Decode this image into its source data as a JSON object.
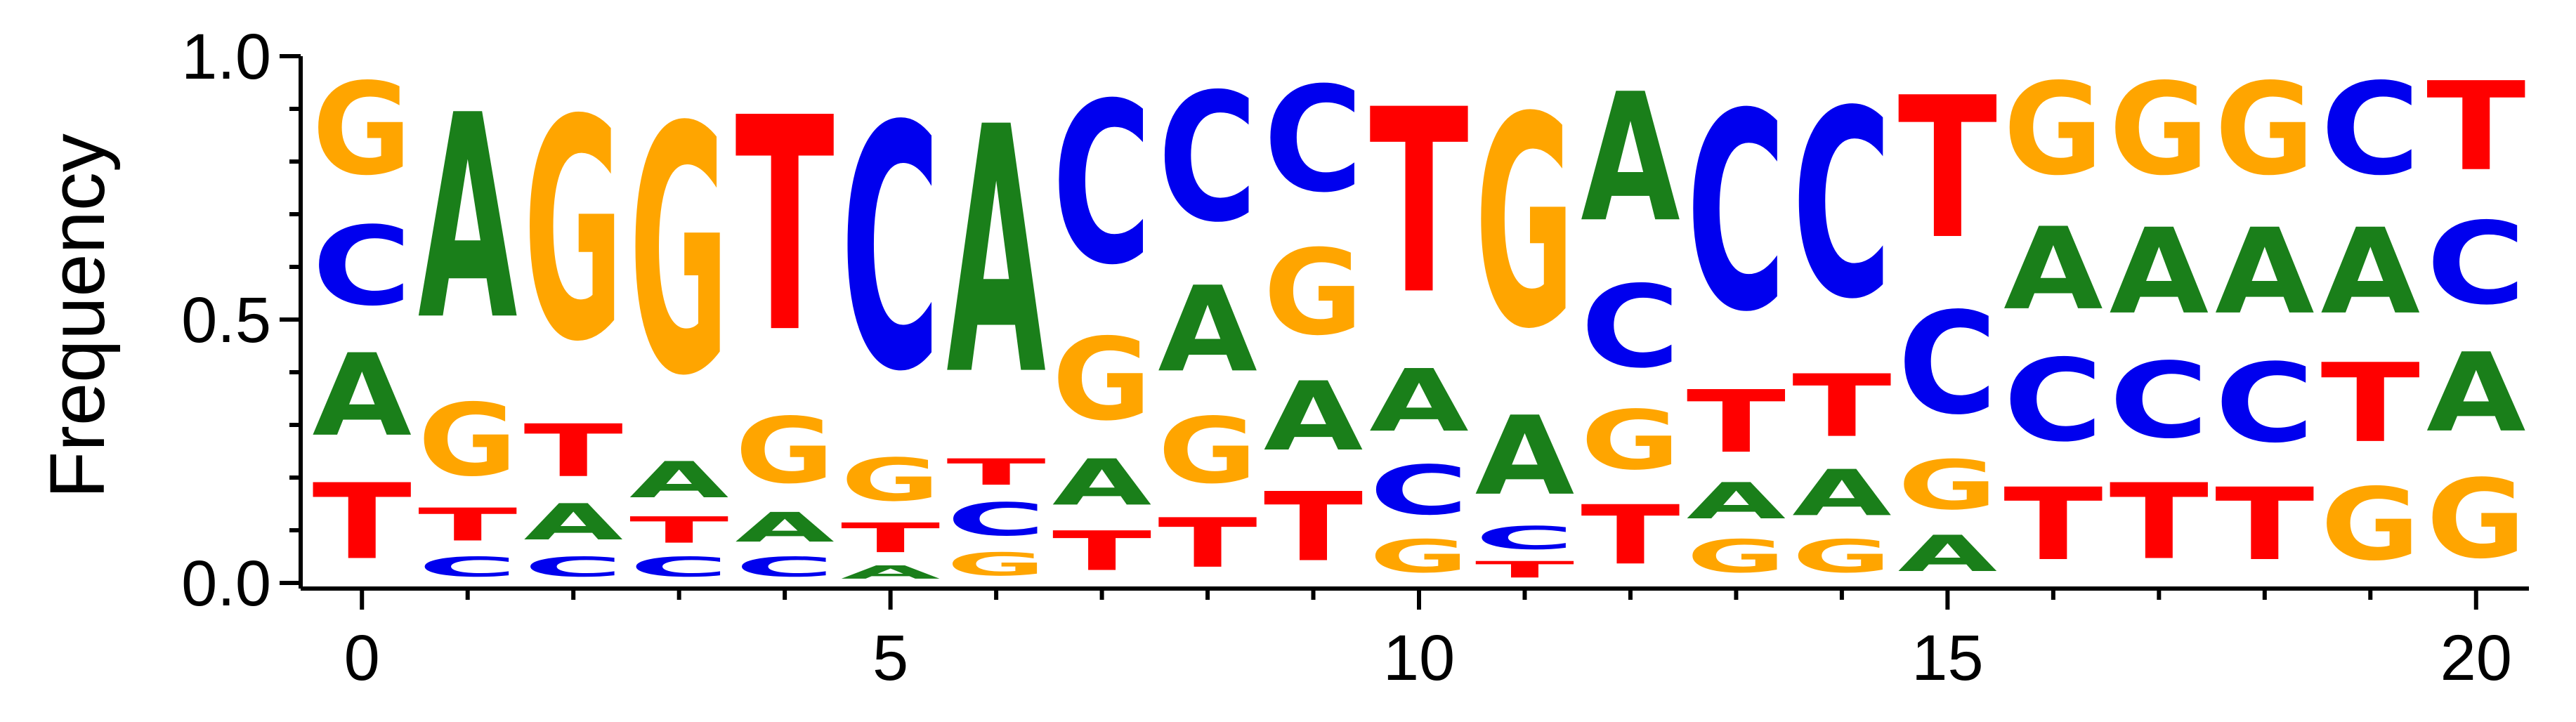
{
  "chart_data": {
    "type": "sequence_logo",
    "ylabel": "Frequency",
    "xlabel": "",
    "ylim": [
      0,
      1
    ],
    "xlim": [
      -0.5,
      20.5
    ],
    "x_ticks": [
      0,
      5,
      10,
      15,
      20
    ],
    "y_ticks": [
      0.0,
      0.5,
      1.0
    ],
    "y_tick_labels": [
      "0.0",
      "0.5",
      "1.0"
    ],
    "colors": {
      "A": "#1a7f1a",
      "C": "#0000ee",
      "G": "#ffa500",
      "T": "#ff0000"
    },
    "positions": [
      {
        "x": 0,
        "stack": [
          {
            "letter": "T",
            "freq": 0.23
          },
          {
            "letter": "A",
            "freq": 0.25
          },
          {
            "letter": "C",
            "freq": 0.24
          },
          {
            "letter": "G",
            "freq": 0.28
          }
        ]
      },
      {
        "x": 1,
        "stack": [
          {
            "letter": "C",
            "freq": 0.06
          },
          {
            "letter": "T",
            "freq": 0.1
          },
          {
            "letter": "G",
            "freq": 0.22
          },
          {
            "letter": "A",
            "freq": 0.62
          }
        ]
      },
      {
        "x": 2,
        "stack": [
          {
            "letter": "C",
            "freq": 0.06
          },
          {
            "letter": "A",
            "freq": 0.11
          },
          {
            "letter": "T",
            "freq": 0.16
          },
          {
            "letter": "G",
            "freq": 0.67
          }
        ]
      },
      {
        "x": 3,
        "stack": [
          {
            "letter": "C",
            "freq": 0.06
          },
          {
            "letter": "T",
            "freq": 0.08
          },
          {
            "letter": "A",
            "freq": 0.11
          },
          {
            "letter": "G",
            "freq": 0.75
          }
        ]
      },
      {
        "x": 4,
        "stack": [
          {
            "letter": "C",
            "freq": 0.06
          },
          {
            "letter": "A",
            "freq": 0.09
          },
          {
            "letter": "G",
            "freq": 0.2
          },
          {
            "letter": "T",
            "freq": 0.65
          }
        ]
      },
      {
        "x": 5,
        "stack": [
          {
            "letter": "A",
            "freq": 0.04
          },
          {
            "letter": "T",
            "freq": 0.09
          },
          {
            "letter": "G",
            "freq": 0.13
          },
          {
            "letter": "C",
            "freq": 0.74
          }
        ]
      },
      {
        "x": 6,
        "stack": [
          {
            "letter": "G",
            "freq": 0.07
          },
          {
            "letter": "C",
            "freq": 0.1
          },
          {
            "letter": "T",
            "freq": 0.08
          },
          {
            "letter": "A",
            "freq": 0.75
          }
        ]
      },
      {
        "x": 7,
        "stack": [
          {
            "letter": "T",
            "freq": 0.12
          },
          {
            "letter": "A",
            "freq": 0.14
          },
          {
            "letter": "G",
            "freq": 0.25
          },
          {
            "letter": "C",
            "freq": 0.49
          }
        ]
      },
      {
        "x": 8,
        "stack": [
          {
            "letter": "T",
            "freq": 0.15
          },
          {
            "letter": "G",
            "freq": 0.2
          },
          {
            "letter": "A",
            "freq": 0.26
          },
          {
            "letter": "C",
            "freq": 0.39
          }
        ]
      },
      {
        "x": 9,
        "stack": [
          {
            "letter": "T",
            "freq": 0.21
          },
          {
            "letter": "A",
            "freq": 0.21
          },
          {
            "letter": "G",
            "freq": 0.26
          },
          {
            "letter": "C",
            "freq": 0.32
          }
        ]
      },
      {
        "x": 10,
        "stack": [
          {
            "letter": "G",
            "freq": 0.1
          },
          {
            "letter": "C",
            "freq": 0.15
          },
          {
            "letter": "A",
            "freq": 0.19
          },
          {
            "letter": "T",
            "freq": 0.56
          }
        ]
      },
      {
        "x": 11,
        "stack": [
          {
            "letter": "T",
            "freq": 0.05
          },
          {
            "letter": "C",
            "freq": 0.07
          },
          {
            "letter": "A",
            "freq": 0.24
          },
          {
            "letter": "G",
            "freq": 0.64
          }
        ]
      },
      {
        "x": 12,
        "stack": [
          {
            "letter": "T",
            "freq": 0.18
          },
          {
            "letter": "G",
            "freq": 0.18
          },
          {
            "letter": "C",
            "freq": 0.25
          },
          {
            "letter": "A",
            "freq": 0.39
          }
        ]
      },
      {
        "x": 13,
        "stack": [
          {
            "letter": "G",
            "freq": 0.1
          },
          {
            "letter": "A",
            "freq": 0.11
          },
          {
            "letter": "T",
            "freq": 0.19
          },
          {
            "letter": "C",
            "freq": 0.6
          }
        ]
      },
      {
        "x": 14,
        "stack": [
          {
            "letter": "G",
            "freq": 0.1
          },
          {
            "letter": "A",
            "freq": 0.14
          },
          {
            "letter": "T",
            "freq": 0.19
          },
          {
            "letter": "C",
            "freq": 0.57
          }
        ]
      },
      {
        "x": 15,
        "stack": [
          {
            "letter": "A",
            "freq": 0.11
          },
          {
            "letter": "G",
            "freq": 0.15
          },
          {
            "letter": "C",
            "freq": 0.31
          },
          {
            "letter": "T",
            "freq": 0.43
          }
        ]
      },
      {
        "x": 16,
        "stack": [
          {
            "letter": "T",
            "freq": 0.22
          },
          {
            "letter": "C",
            "freq": 0.25
          },
          {
            "letter": "A",
            "freq": 0.25
          },
          {
            "letter": "G",
            "freq": 0.28
          }
        ]
      },
      {
        "x": 17,
        "stack": [
          {
            "letter": "T",
            "freq": 0.23
          },
          {
            "letter": "C",
            "freq": 0.23
          },
          {
            "letter": "A",
            "freq": 0.26
          },
          {
            "letter": "G",
            "freq": 0.28
          }
        ]
      },
      {
        "x": 18,
        "stack": [
          {
            "letter": "T",
            "freq": 0.22
          },
          {
            "letter": "C",
            "freq": 0.24
          },
          {
            "letter": "A",
            "freq": 0.26
          },
          {
            "letter": "G",
            "freq": 0.28
          }
        ]
      },
      {
        "x": 19,
        "stack": [
          {
            "letter": "G",
            "freq": 0.22
          },
          {
            "letter": "T",
            "freq": 0.24
          },
          {
            "letter": "A",
            "freq": 0.26
          },
          {
            "letter": "C",
            "freq": 0.28
          }
        ]
      },
      {
        "x": 20,
        "stack": [
          {
            "letter": "G",
            "freq": 0.24
          },
          {
            "letter": "A",
            "freq": 0.24
          },
          {
            "letter": "C",
            "freq": 0.25
          },
          {
            "letter": "T",
            "freq": 0.27
          }
        ]
      }
    ]
  }
}
